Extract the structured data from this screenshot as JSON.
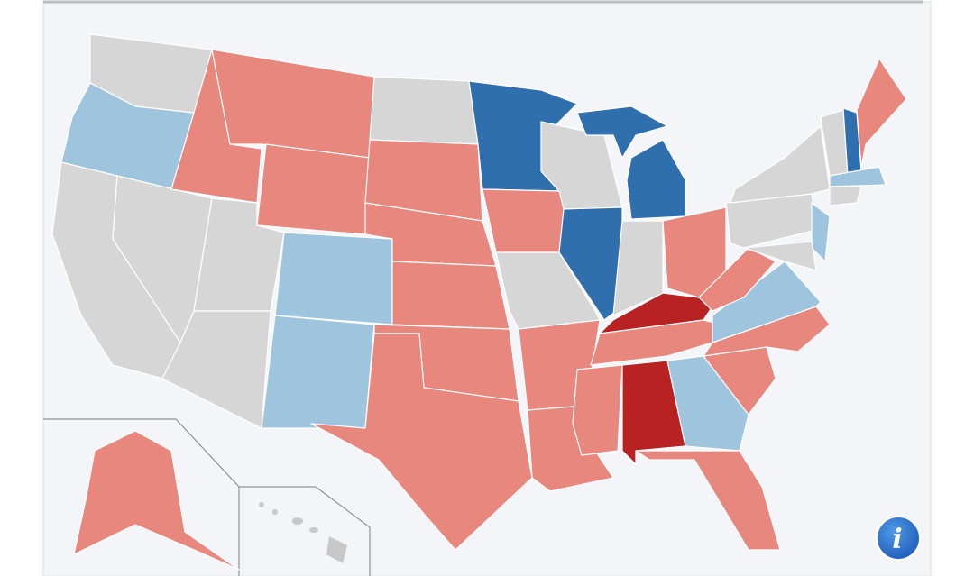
{
  "info_button": {
    "label": "i"
  }
}
